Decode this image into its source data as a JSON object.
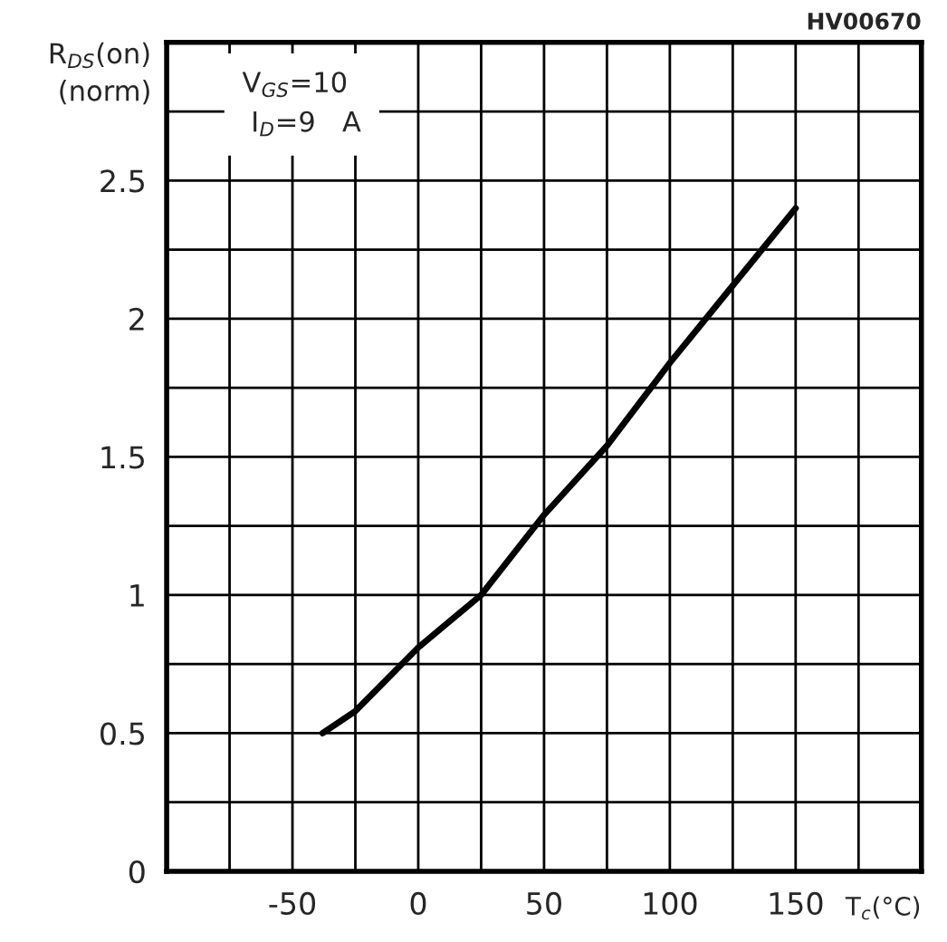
{
  "chart_data": {
    "type": "line",
    "xlabel": "T$_{c}$(°C)",
    "ylabel": "R$_{DS}$(on)\n(norm)",
    "annotations": [
      "V$_{GS}$=10\n I$_{D}$=9   A",
      "HV00670"
    ],
    "x": [
      -38,
      -25,
      0,
      25,
      50,
      75,
      100,
      125,
      150
    ],
    "series": [
      {
        "color": "#000000",
        "values": [
          0.5,
          0.58,
          0.81,
          1.0,
          1.29,
          1.54,
          1.84,
          2.12,
          2.4
        ]
      }
    ],
    "xlim": [
      -100,
      200
    ],
    "xticks": [
      {
        "value": -100,
        "label": null
      },
      {
        "value": -75,
        "label": null
      },
      -50,
      {
        "value": -25,
        "label": null
      },
      0,
      {
        "value": 25,
        "label": null
      },
      50,
      {
        "value": 75,
        "label": null
      },
      100,
      {
        "value": 125,
        "label": null
      },
      150,
      {
        "value": 175,
        "label": null
      },
      {
        "value": 200,
        "label": null
      }
    ],
    "ylim": [
      0,
      3
    ],
    "yticks": [
      0,
      {
        "value": 0.25,
        "label": null
      },
      0.5,
      {
        "value": 0.75,
        "label": null
      },
      1,
      {
        "value": 1.25,
        "label": null
      },
      1.5,
      {
        "value": 1.75,
        "label": null
      },
      2,
      {
        "value": 2.25,
        "label": null
      },
      2.5,
      {
        "value": 2.75,
        "label": null
      },
      {
        "value": 3,
        "label": null
      }
    ],
    "grid": true,
    "marker": "none",
    "line_style": "solid",
    "legend": false
  }
}
